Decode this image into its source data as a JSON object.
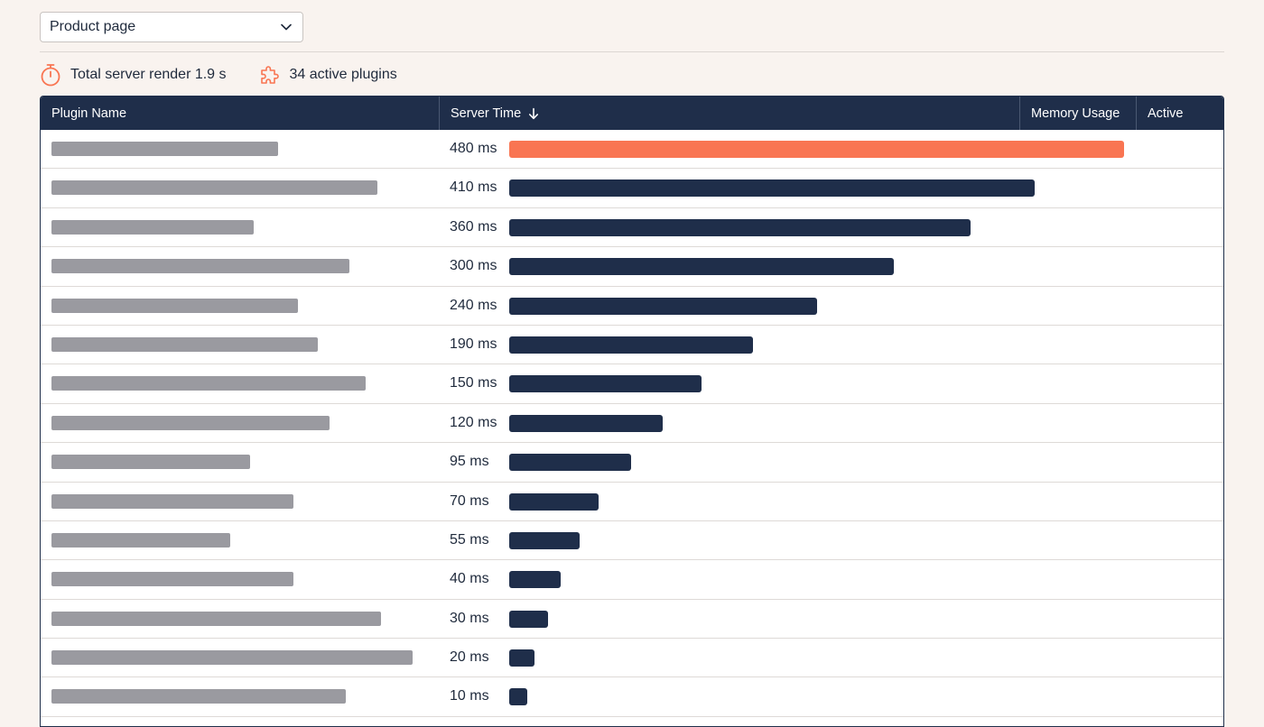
{
  "view_select": {
    "value": "Product page"
  },
  "stats": {
    "render_text": "Total server render 1.9 s",
    "plugins_text": "34 active plugins",
    "icons": {
      "render": "stopwatch-icon",
      "plugins": "puzzle-icon"
    },
    "accent_color": "#f97552"
  },
  "table": {
    "columns": [
      {
        "key": "name",
        "label": "Plugin Name"
      },
      {
        "key": "server_time",
        "label": "Server Time",
        "sort": "descending"
      },
      {
        "key": "memory",
        "label": "Memory Usage"
      },
      {
        "key": "active",
        "label": "Active"
      }
    ],
    "max_ms": 480,
    "bar_color": "#1f2e4a",
    "highlight_color": "#f97552",
    "rows": [
      {
        "ms": 480,
        "label": "480 ms",
        "name_fraction": 0.57,
        "highlight": true
      },
      {
        "ms": 410,
        "label": "410 ms",
        "name_fraction": 0.82
      },
      {
        "ms": 360,
        "label": "360 ms",
        "name_fraction": 0.51
      },
      {
        "ms": 300,
        "label": "300 ms",
        "name_fraction": 0.75
      },
      {
        "ms": 240,
        "label": "240 ms",
        "name_fraction": 0.62
      },
      {
        "ms": 190,
        "label": "190 ms",
        "name_fraction": 0.67
      },
      {
        "ms": 150,
        "label": "150 ms",
        "name_fraction": 0.79
      },
      {
        "ms": 120,
        "label": "120 ms",
        "name_fraction": 0.7
      },
      {
        "ms": 95,
        "label": "95 ms",
        "name_fraction": 0.5
      },
      {
        "ms": 70,
        "label": "70 ms",
        "name_fraction": 0.61
      },
      {
        "ms": 55,
        "label": "55 ms",
        "name_fraction": 0.45
      },
      {
        "ms": 40,
        "label": "40 ms",
        "name_fraction": 0.61
      },
      {
        "ms": 30,
        "label": "30 ms",
        "name_fraction": 0.83
      },
      {
        "ms": 20,
        "label": "20 ms",
        "name_fraction": 0.91
      },
      {
        "ms": 10,
        "label": "10 ms",
        "name_fraction": 0.74
      }
    ]
  }
}
